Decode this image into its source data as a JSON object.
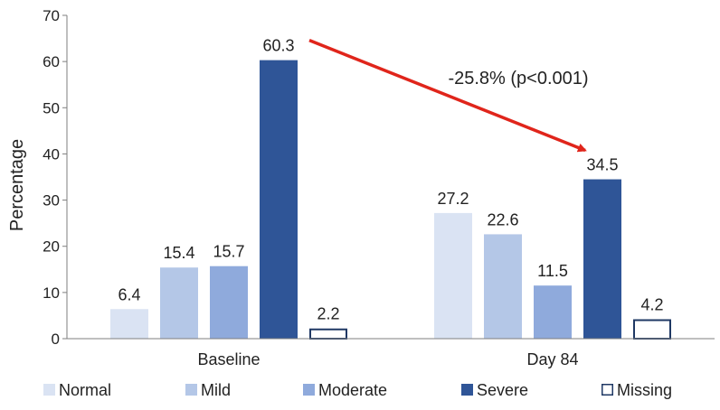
{
  "chart_data": {
    "type": "bar",
    "title": "",
    "xlabel": "",
    "ylabel": "Percentage",
    "ylim": [
      0,
      70
    ],
    "yticks": [
      0,
      10,
      20,
      30,
      40,
      50,
      60,
      70
    ],
    "grid": false,
    "legend_position": "bottom",
    "categories": [
      "Baseline",
      "Day 84"
    ],
    "series": [
      {
        "name": "Normal",
        "values": [
          6.4,
          27.2
        ],
        "labels": [
          "6.4",
          "27.2"
        ],
        "color": "#dae3f3",
        "outline": false
      },
      {
        "name": "Mild",
        "values": [
          15.4,
          22.6
        ],
        "labels": [
          "15.4",
          "22.6"
        ],
        "color": "#b4c7e7",
        "outline": false
      },
      {
        "name": "Moderate",
        "values": [
          15.7,
          11.5
        ],
        "labels": [
          "15.7",
          "11.5"
        ],
        "color": "#8faadc",
        "outline": false
      },
      {
        "name": "Severe",
        "values": [
          60.3,
          34.5
        ],
        "labels": [
          "60.3",
          "34.5"
        ],
        "color": "#2f5597",
        "outline": false
      },
      {
        "name": "Missing",
        "values": [
          2.2,
          4.2
        ],
        "labels": [
          "2.2",
          "4.2"
        ],
        "color": "#ffffff",
        "stroke": "#1f3864",
        "outline": true
      }
    ],
    "annotation": {
      "text": "-25.8% (p<0.001)",
      "from_series": "Severe",
      "from_category": "Baseline",
      "to_category": "Day 84",
      "color": "#e0251b"
    }
  }
}
